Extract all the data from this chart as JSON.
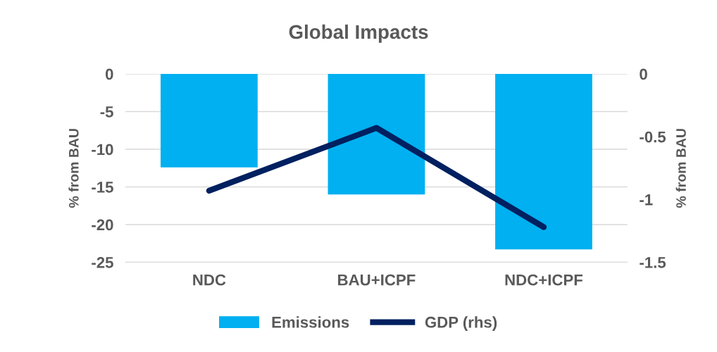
{
  "chart_data": {
    "type": "bar",
    "title": "Global Impacts",
    "categories": [
      "NDC",
      "BAU+ICPF",
      "NDC+ICPF"
    ],
    "series": [
      {
        "name": "Emissions",
        "color": "#00b0f0",
        "values": [
          -12.4,
          -16.0,
          -23.3
        ]
      },
      {
        "name": "GDP (rhs)",
        "type": "line",
        "axis": "y2",
        "color": "#002060",
        "values": [
          -0.93,
          -0.43,
          -1.22
        ]
      }
    ],
    "ylabel": "% from BAU",
    "y2label": "% from BAU",
    "ylim": [
      -25,
      0
    ],
    "yticks": [
      0,
      -5,
      -10,
      -15,
      -20,
      -25
    ],
    "y2lim": [
      -1.5,
      0
    ],
    "y2ticks": [
      0,
      -0.5,
      -1,
      -1.5
    ],
    "grid": "y",
    "legend": "bottom"
  }
}
